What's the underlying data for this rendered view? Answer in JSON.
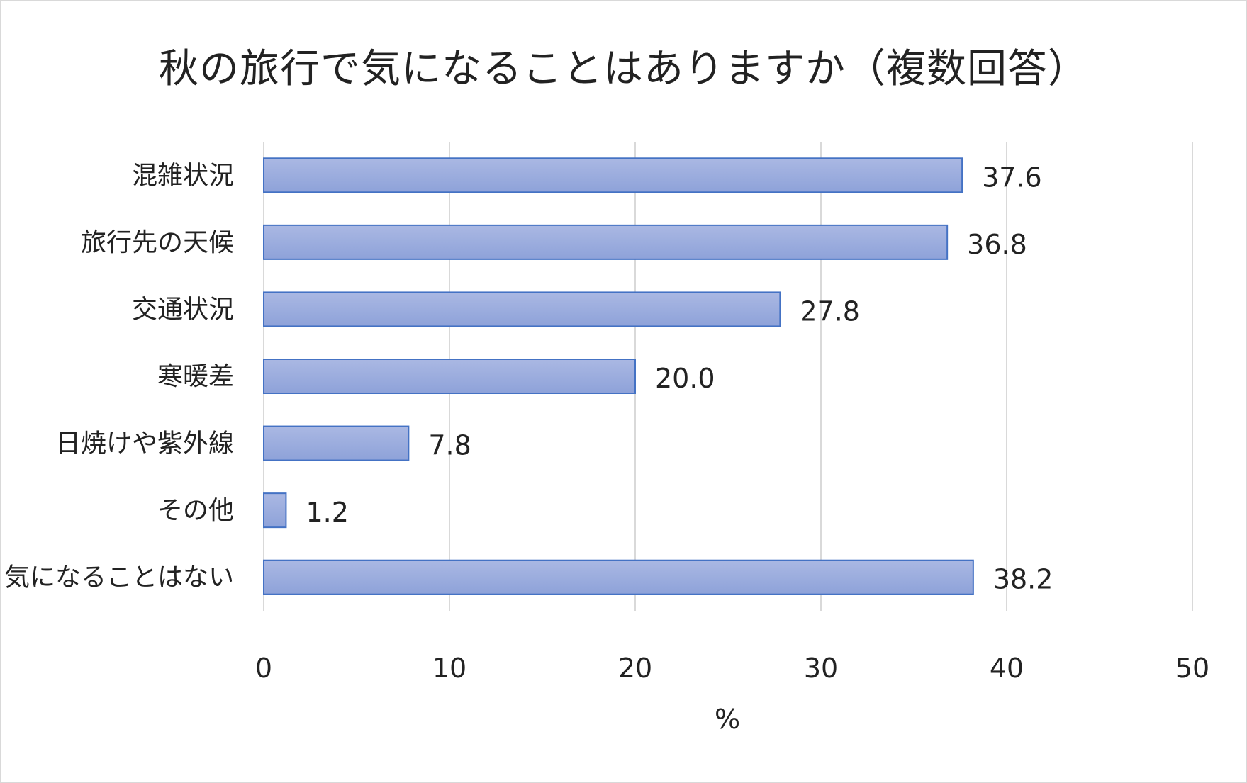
{
  "chart_data": {
    "type": "bar",
    "orientation": "horizontal",
    "title": "秋の旅行で気になることはありますか（複数回答）",
    "xlabel": "%",
    "ylabel": "",
    "categories": [
      "混雑状況",
      "旅行先の天候",
      "交通状況",
      "寒暖差",
      "日焼けや紫外線",
      "その他",
      "気になることはない"
    ],
    "values": [
      37.6,
      36.8,
      27.8,
      20.0,
      7.8,
      1.2,
      38.2
    ],
    "value_labels": [
      "37.6",
      "36.8",
      "27.8",
      "20.0",
      "7.8",
      "1.2",
      "38.2"
    ],
    "xlim": [
      0,
      50
    ],
    "xticks": [
      "0",
      "10",
      "20",
      "30",
      "40",
      "50"
    ],
    "grid": true,
    "colors": {
      "bar_fill_top": "#aab8e3",
      "bar_fill_bottom": "#8ea2d9",
      "bar_stroke": "#4472c4",
      "grid": "#d9d9d9"
    }
  }
}
